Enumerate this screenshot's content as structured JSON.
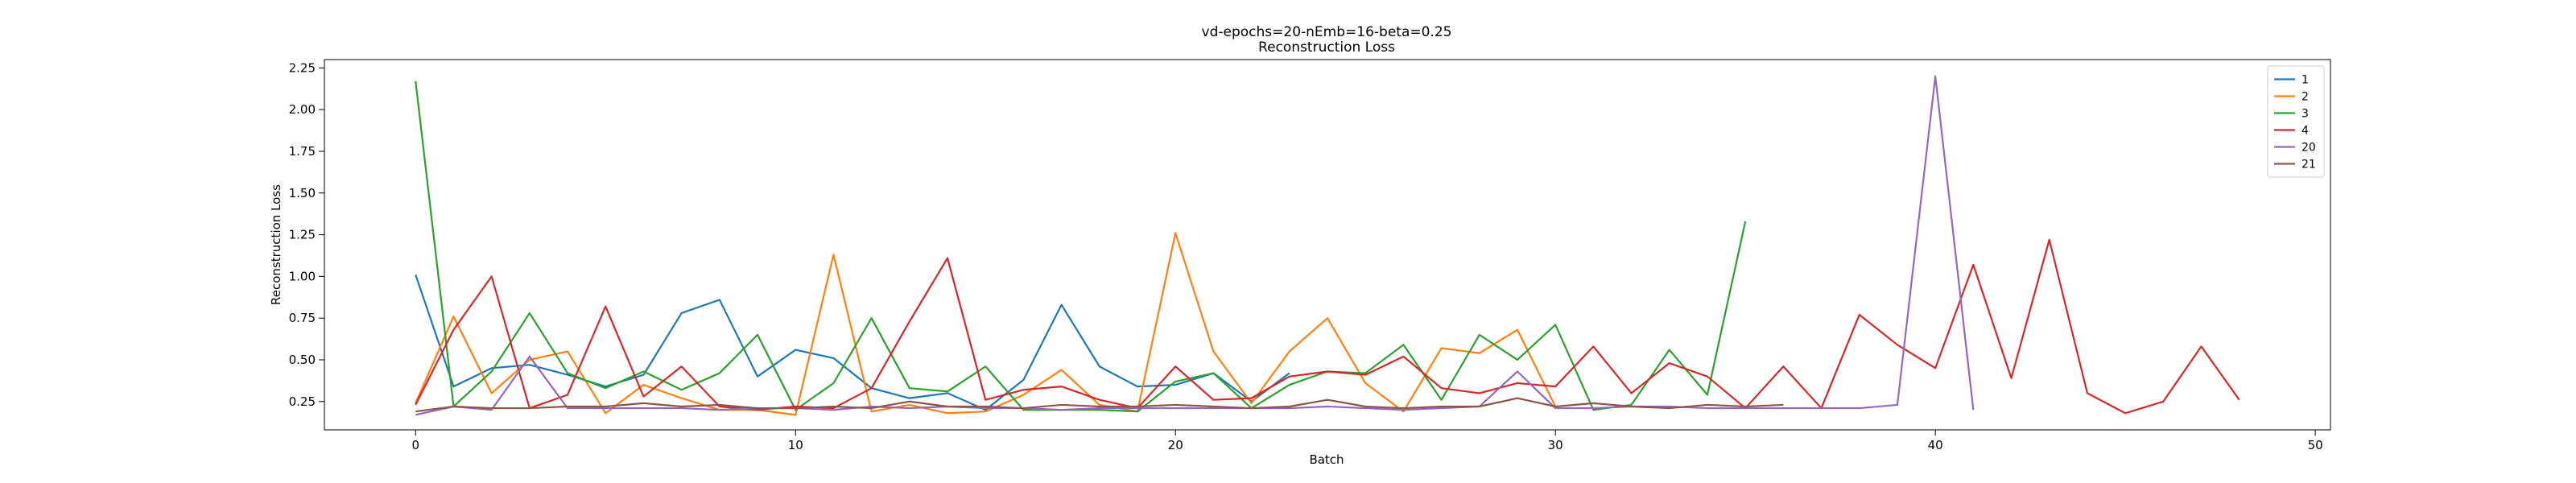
{
  "chart_data": {
    "type": "line",
    "title": "vd-epochs=20-nEmb=16-beta=0.25",
    "subtitle": "Reconstruction Loss",
    "xlabel": "Batch",
    "ylabel": "Reconstruction Loss",
    "xlim": [
      -2.4,
      50.4
    ],
    "ylim": [
      0.08,
      2.3
    ],
    "xticks": [
      0,
      10,
      20,
      30,
      40,
      50
    ],
    "yticks": [
      0.25,
      0.5,
      0.75,
      1.0,
      1.25,
      1.5,
      1.75,
      2.0,
      2.25
    ],
    "ytick_labels": [
      "0.25",
      "0.50",
      "0.75",
      "1.00",
      "1.25",
      "1.50",
      "1.75",
      "2.00",
      "2.25"
    ],
    "grid": false,
    "legend_position": "top-right",
    "series": [
      {
        "name": "1",
        "color": "#1f77b4",
        "values": [
          1.01,
          0.34,
          0.45,
          0.47,
          0.41,
          0.34,
          0.41,
          0.78,
          0.86,
          0.4,
          0.56,
          0.51,
          0.33,
          0.27,
          0.3,
          0.2,
          0.38,
          0.83,
          0.46,
          0.34,
          0.35,
          0.42,
          0.25,
          0.42
        ]
      },
      {
        "name": "2",
        "color": "#ff7f0e",
        "values": [
          0.24,
          0.76,
          0.3,
          0.5,
          0.55,
          0.18,
          0.35,
          0.27,
          0.2,
          0.2,
          0.17,
          1.13,
          0.19,
          0.23,
          0.18,
          0.19,
          0.29,
          0.44,
          0.23,
          0.19,
          1.26,
          0.55,
          0.24,
          0.55,
          0.75,
          0.36,
          0.19,
          0.57,
          0.54,
          0.68,
          0.22
        ]
      },
      {
        "name": "3",
        "color": "#2ca02c",
        "values": [
          2.17,
          0.22,
          0.43,
          0.78,
          0.42,
          0.33,
          0.43,
          0.32,
          0.42,
          0.65,
          0.2,
          0.36,
          0.75,
          0.33,
          0.31,
          0.46,
          0.2,
          0.2,
          0.2,
          0.19,
          0.37,
          0.42,
          0.21,
          0.35,
          0.43,
          0.42,
          0.59,
          0.26,
          0.65,
          0.5,
          0.71,
          0.2,
          0.23,
          0.56,
          0.29,
          1.33
        ]
      },
      {
        "name": "4",
        "color": "#d62728",
        "values": [
          0.23,
          0.68,
          1.0,
          0.21,
          0.29,
          0.82,
          0.28,
          0.46,
          0.22,
          0.2,
          0.22,
          0.21,
          0.33,
          0.73,
          1.11,
          0.26,
          0.32,
          0.34,
          0.26,
          0.21,
          0.46,
          0.26,
          0.27,
          0.4,
          0.43,
          0.41,
          0.52,
          0.33,
          0.3,
          0.36,
          0.34,
          0.58,
          0.3,
          0.48,
          0.4,
          0.21,
          0.46,
          0.21,
          0.77,
          0.59,
          0.45,
          1.07,
          0.39,
          1.22,
          0.3,
          0.18,
          0.25,
          0.58,
          0.26
        ]
      },
      {
        "name": "20",
        "color": "#9467bd",
        "values": [
          0.17,
          0.22,
          0.2,
          0.52,
          0.21,
          0.21,
          0.21,
          0.21,
          0.2,
          0.21,
          0.21,
          0.2,
          0.22,
          0.21,
          0.22,
          0.21,
          0.21,
          0.2,
          0.21,
          0.21,
          0.21,
          0.21,
          0.21,
          0.21,
          0.22,
          0.21,
          0.2,
          0.21,
          0.22,
          0.43,
          0.21,
          0.21,
          0.22,
          0.22,
          0.21,
          0.21,
          0.21,
          0.21,
          0.21,
          0.23,
          2.2,
          0.2
        ]
      },
      {
        "name": "21",
        "color": "#8c564b",
        "values": [
          0.19,
          0.22,
          0.21,
          0.21,
          0.22,
          0.22,
          0.24,
          0.22,
          0.23,
          0.21,
          0.21,
          0.22,
          0.21,
          0.25,
          0.22,
          0.22,
          0.21,
          0.23,
          0.22,
          0.22,
          0.23,
          0.22,
          0.21,
          0.22,
          0.26,
          0.22,
          0.21,
          0.22,
          0.22,
          0.27,
          0.22,
          0.24,
          0.22,
          0.21,
          0.23,
          0.22,
          0.23
        ]
      }
    ]
  }
}
